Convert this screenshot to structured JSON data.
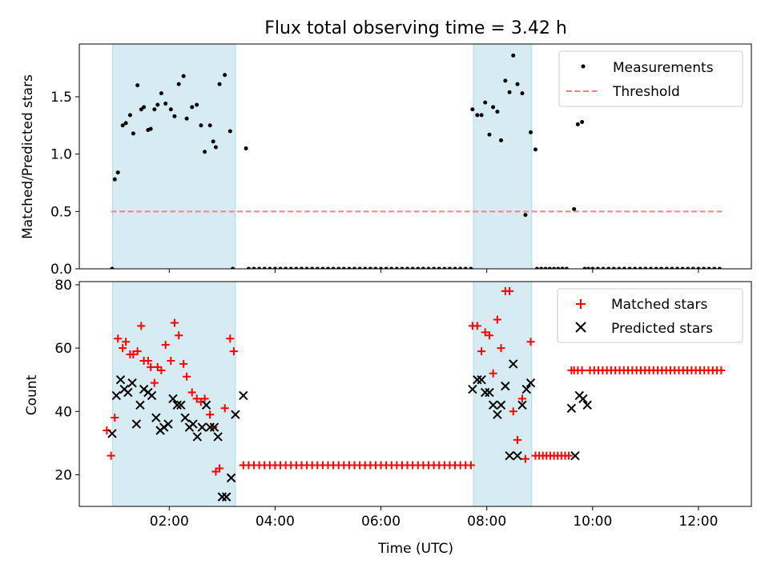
{
  "chart_data": {
    "title": "Flux total observing time = 3.42 h",
    "xlabel": "Time (UTC)",
    "x_unit": "hours UTC",
    "xlim": [
      0.3,
      13.0
    ],
    "x_ticks": [
      {
        "value": 2,
        "label": "02:00"
      },
      {
        "value": 4,
        "label": "04:00"
      },
      {
        "value": 6,
        "label": "06:00"
      },
      {
        "value": 8,
        "label": "08:00"
      },
      {
        "value": 10,
        "label": "10:00"
      },
      {
        "value": 12,
        "label": "12:00"
      }
    ],
    "shaded_intervals": [
      [
        0.93,
        3.25
      ],
      [
        7.75,
        8.85
      ]
    ],
    "shade_color": "#add8e6",
    "panels": [
      {
        "type": "scatter",
        "ylabel": "Matched/Predicted stars",
        "ylim": [
          0,
          1.96
        ],
        "y_ticks": [
          {
            "value": 0.0,
            "label": "0.0"
          },
          {
            "value": 0.5,
            "label": "0.5"
          },
          {
            "value": 1.0,
            "label": "1.0"
          },
          {
            "value": 1.5,
            "label": "1.5"
          }
        ],
        "legend": {
          "position": "top-right",
          "entries": [
            "Measurements",
            "Threshold"
          ]
        },
        "series": [
          {
            "name": "Measurements",
            "marker": "dot",
            "color": "#000000",
            "x": [
              0.92,
              0.97,
              1.03,
              1.12,
              1.18,
              1.26,
              1.32,
              1.4,
              1.47,
              1.52,
              1.6,
              1.65,
              1.72,
              1.78,
              1.85,
              1.93,
              2.03,
              2.1,
              2.18,
              2.27,
              2.33,
              2.43,
              2.52,
              2.6,
              2.67,
              2.77,
              2.83,
              2.88,
              2.95,
              3.05,
              3.15,
              3.2,
              3.45,
              7.73,
              7.82,
              7.9,
              7.97,
              8.05,
              8.12,
              8.2,
              8.27,
              8.35,
              8.43,
              8.5,
              8.58,
              8.67,
              8.73,
              8.83,
              8.92,
              9.65,
              9.72,
              9.8,
              9.85,
              9.92
            ],
            "y": [
              0.0,
              0.78,
              0.84,
              1.25,
              1.27,
              1.34,
              1.18,
              1.6,
              1.39,
              1.41,
              1.21,
              1.22,
              1.39,
              1.43,
              1.53,
              1.44,
              1.39,
              1.33,
              1.61,
              1.68,
              1.31,
              1.41,
              1.43,
              1.25,
              1.02,
              1.25,
              1.11,
              1.06,
              1.61,
              1.69,
              1.2,
              0.0,
              1.05,
              1.39,
              1.34,
              1.34,
              1.45,
              1.17,
              1.41,
              1.37,
              1.12,
              1.64,
              1.54,
              1.86,
              1.61,
              1.53,
              0.47,
              1.19,
              1.04,
              0.52,
              1.26,
              1.28,
              0.0,
              0.0
            ],
            "zero_runs": [
              [
                3.5,
                7.7,
                0.1
              ],
              [
                8.95,
                9.55,
                0.08
              ],
              [
                10.0,
                12.45,
                0.1
              ]
            ]
          },
          {
            "name": "Threshold",
            "marker": "dashed-line",
            "color": "#ff7f7f",
            "x": [
              0.9,
              12.45
            ],
            "y": [
              0.5,
              0.5
            ]
          }
        ]
      },
      {
        "type": "scatter",
        "ylabel": "Count",
        "ylim": [
          10,
          81
        ],
        "y_ticks": [
          {
            "value": 20,
            "label": "20"
          },
          {
            "value": 40,
            "label": "40"
          },
          {
            "value": 60,
            "label": "60"
          },
          {
            "value": 80,
            "label": "80"
          }
        ],
        "legend": {
          "position": "top-right",
          "entries": [
            "Matched stars",
            "Predicted stars"
          ]
        },
        "series": [
          {
            "name": "Matched stars",
            "marker": "plus",
            "color": "#ff0000",
            "x": [
              0.82,
              0.9,
              0.97,
              1.03,
              1.12,
              1.18,
              1.26,
              1.32,
              1.4,
              1.47,
              1.52,
              1.6,
              1.65,
              1.72,
              1.78,
              1.85,
              1.93,
              2.03,
              2.1,
              2.18,
              2.27,
              2.33,
              2.43,
              2.52,
              2.6,
              2.67,
              2.77,
              2.83,
              2.88,
              2.95,
              3.05,
              3.15,
              3.22,
              7.73,
              7.82,
              7.9,
              7.97,
              8.05,
              8.12,
              8.2,
              8.27,
              8.35,
              8.43,
              8.5,
              8.58,
              8.67,
              8.73,
              8.83,
              9.6,
              9.65,
              9.72,
              9.8
            ],
            "y": [
              34,
              26,
              38,
              63,
              60,
              62,
              58,
              58,
              59,
              67,
              56,
              56,
              54,
              49,
              54,
              53,
              61,
              56,
              68,
              64,
              55,
              51,
              46,
              44,
              43,
              44,
              39,
              35,
              21,
              22,
              41,
              63,
              59,
              67,
              67,
              59,
              65,
              64,
              52,
              69,
              60,
              78,
              78,
              40,
              31,
              44,
              25,
              62,
              53,
              53,
              53,
              53
            ],
            "flat_runs": [
              [
                3.4,
                7.7,
                0.1,
                23
              ],
              [
                8.92,
                9.55,
                0.07,
                26
              ],
              [
                9.95,
                12.45,
                0.08,
                53
              ]
            ]
          },
          {
            "name": "Predicted stars",
            "marker": "x",
            "color": "#000000",
            "x": [
              0.92,
              1.0,
              1.08,
              1.15,
              1.22,
              1.3,
              1.38,
              1.45,
              1.52,
              1.6,
              1.67,
              1.75,
              1.83,
              1.9,
              1.98,
              2.07,
              2.15,
              2.22,
              2.3,
              2.38,
              2.45,
              2.53,
              2.62,
              2.7,
              2.77,
              2.85,
              2.92,
              3.0,
              3.08,
              3.17,
              3.25,
              3.4,
              7.73,
              7.82,
              7.9,
              7.97,
              8.05,
              8.12,
              8.2,
              8.27,
              8.35,
              8.43,
              8.5,
              8.58,
              8.67,
              8.75,
              8.83,
              9.6,
              9.67,
              9.75,
              9.82,
              9.9
            ],
            "y": [
              33,
              45,
              50,
              47,
              46,
              49,
              36,
              42,
              47,
              46,
              45,
              38,
              34,
              35,
              36,
              44,
              42,
              42,
              38,
              35,
              36,
              32,
              35,
              42,
              35,
              35,
              32,
              13,
              13,
              19,
              39,
              45,
              47,
              50,
              50,
              46,
              46,
              42,
              39,
              42,
              48,
              26,
              55,
              26,
              42,
              47,
              49,
              41,
              26,
              45,
              44,
              42
            ]
          }
        ]
      }
    ]
  }
}
